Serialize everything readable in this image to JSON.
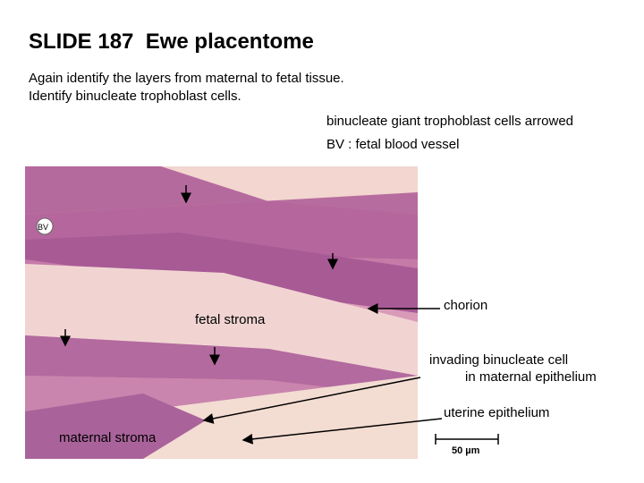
{
  "title": "SLIDE 187  Ewe placentome",
  "instructions": [
    "Again identify the layers from maternal to fetal tissue.",
    "Identify binucleate trophoblast cells."
  ],
  "legend": [
    "binucleate giant trophoblast cells arrowed",
    "BV : fetal blood vessel"
  ],
  "image_labels": {
    "bv": "BV",
    "fetal_stroma": "fetal stroma",
    "maternal_stroma": "maternal stroma"
  },
  "annotations": {
    "chorion": "chorion",
    "invading": [
      "invading binucleate cell",
      "in maternal epithelium"
    ],
    "uterine": "uterine epithelium"
  },
  "scale_bar": "50 µm"
}
